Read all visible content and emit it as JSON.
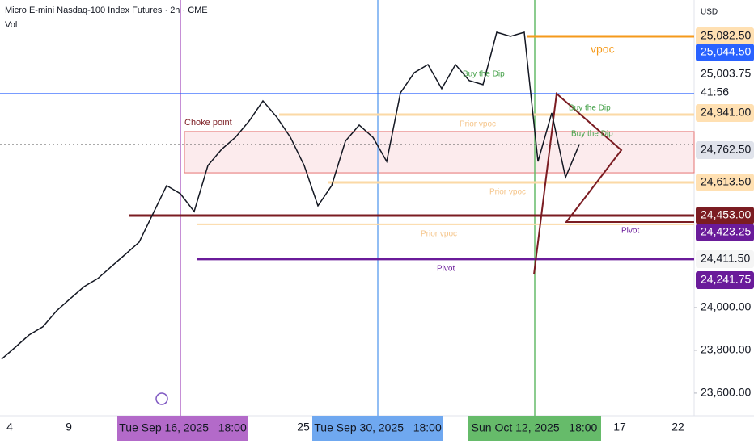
{
  "chart_data": {
    "type": "line",
    "title": "Micro E-mini Nasdaq-100 Index Futures · 2h · CME",
    "subtitle": "Vol",
    "y_axis_label": "USD",
    "series": [
      {
        "color": "#131722",
        "values": [
          23759,
          23815,
          23872,
          23910,
          23985,
          24042,
          24098,
          24136,
          24193,
          24249,
          24306,
          24438,
          24570,
          24532,
          24449,
          24664,
          24740,
          24796,
          24872,
          24966,
          24891,
          24796,
          24664,
          24476,
          24570,
          24778,
          24853,
          24796,
          24683,
          25004,
          25098,
          25136,
          25023,
          25136,
          25061,
          25042,
          25287,
          25268,
          25287,
          24683,
          24910,
          24608,
          24762
        ]
      }
    ],
    "ylim": [
      23494,
      25438
    ],
    "yticks": [
      {
        "value": 24000,
        "label": "24,000.00"
      },
      {
        "value": 23800,
        "label": "23,800.00"
      },
      {
        "value": 23600,
        "label": "23,600.00"
      }
    ],
    "price_tags": [
      {
        "value": 25082.5,
        "label": "25,082.50",
        "color": "#ffe0b2",
        "text_color": "#131722"
      },
      {
        "value": 25044.5,
        "label": "25,044.50",
        "color": "#2962ff",
        "text_color": "#ffffff"
      },
      {
        "value": 25003.75,
        "label": "25,003.75",
        "color": "#ffffff",
        "text_color": "#131722"
      },
      {
        "value": 24941,
        "label": "24,941.00",
        "color": "#ffe0b2",
        "text_color": "#131722"
      },
      {
        "value": 24762.5,
        "label": "24,762.50",
        "color": "#e0e3eb",
        "text_color": "#131722"
      },
      {
        "value": 24613.5,
        "label": "24,613.50",
        "color": "#ffe0b2",
        "text_color": "#131722"
      },
      {
        "value": 24453,
        "label": "24,453.00",
        "color": "#7b1c22",
        "text_color": "#ffffff"
      },
      {
        "value": 24423.25,
        "label": "24,423.25",
        "color": "#6a1b9a",
        "text_color": "#ffffff"
      },
      {
        "value": 24411.5,
        "label": "24,411.50",
        "color": "#f5f5f5",
        "text_color": "#131722"
      },
      {
        "value": 24241.75,
        "label": "24,241.75",
        "color": "#6a1b9a",
        "text_color": "#ffffff"
      }
    ],
    "countdown": "41:56",
    "levels": [
      {
        "value": 25268,
        "color": "#f59a1b"
      },
      {
        "value": 25000,
        "color": "#2962ff"
      },
      {
        "value": 24430,
        "color": "#7b1c22"
      },
      {
        "value": 24227,
        "color": "#6a1b9a"
      },
      {
        "value": 24902,
        "color": "#fbd9a6"
      },
      {
        "value": 24585,
        "color": "#fbd9a6"
      },
      {
        "value": 24389,
        "color": "#fbd9a6"
      }
    ],
    "zone": {
      "from": 24630,
      "to": 24823,
      "color": "#fbe3e5"
    },
    "annotations": [
      {
        "text": "Choke point",
        "color": "#7b1c22"
      },
      {
        "text": "vpoc",
        "color": "#f59a1b"
      },
      {
        "text": "Buy the Dip",
        "color": "#43a047"
      },
      {
        "text": "Buy the Dip",
        "color": "#43a047"
      },
      {
        "text": "Buy the Dip",
        "color": "#43a047"
      },
      {
        "text": "Prior vpoc",
        "color": "#f5c58a"
      },
      {
        "text": "Prior vpoc",
        "color": "#f5c58a"
      },
      {
        "text": "Prior vpoc",
        "color": "#f5c58a"
      },
      {
        "text": "Pivot",
        "color": "#6a1b9a"
      },
      {
        "text": "Pivot",
        "color": "#6a1b9a"
      }
    ],
    "x_labels": [
      "4",
      "9",
      "25",
      "17",
      "22"
    ],
    "crosshair_labels": [
      {
        "text": "Tue Sep 16, 2025   18:00",
        "color": "#b36ac9"
      },
      {
        "text": "Tue Sep 30, 2025   18:00",
        "color": "#6fa8f0"
      },
      {
        "text": "Sun Oct 12, 2025   18:00",
        "color": "#66bb6a"
      }
    ]
  }
}
